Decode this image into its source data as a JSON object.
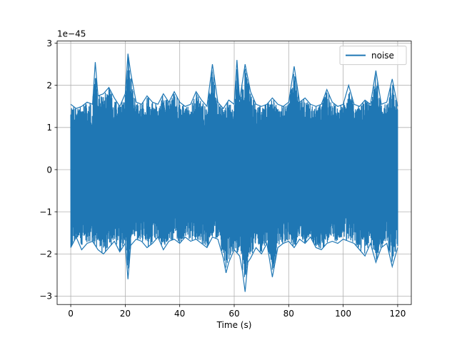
{
  "chart_data": {
    "type": "line",
    "xlabel": "Time (s)",
    "ylabel": "",
    "y_scale_label": "1e−45",
    "y_scale_exponent": -45,
    "xlim": [
      -5,
      125
    ],
    "ylim": [
      -3.2,
      3.05
    ],
    "x_ticks": [
      0,
      20,
      40,
      60,
      80,
      100,
      120
    ],
    "x_tick_labels": [
      "0",
      "20",
      "40",
      "60",
      "80",
      "100",
      "120"
    ],
    "y_ticks": [
      -3,
      -2,
      -1,
      0,
      1,
      2,
      3
    ],
    "y_tick_labels": [
      "−3",
      "−2",
      "−1",
      "0",
      "1",
      "2",
      "3"
    ],
    "grid": true,
    "legend_position": "top-right",
    "series": [
      {
        "name": "noise",
        "color": "#1f77b4",
        "x_range": [
          0,
          120
        ],
        "envelope_upper": [
          [
            0,
            1.55
          ],
          [
            2,
            1.45
          ],
          [
            4,
            1.5
          ],
          [
            6,
            1.6
          ],
          [
            8,
            1.55
          ],
          [
            9,
            2.55
          ],
          [
            10,
            1.75
          ],
          [
            12,
            1.8
          ],
          [
            14,
            1.95
          ],
          [
            16,
            1.7
          ],
          [
            18,
            1.5
          ],
          [
            20,
            1.8
          ],
          [
            21,
            2.75
          ],
          [
            22,
            2.3
          ],
          [
            24,
            1.6
          ],
          [
            26,
            1.55
          ],
          [
            28,
            1.75
          ],
          [
            30,
            1.6
          ],
          [
            32,
            1.55
          ],
          [
            34,
            1.8
          ],
          [
            36,
            1.6
          ],
          [
            38,
            1.85
          ],
          [
            40,
            1.6
          ],
          [
            42,
            1.5
          ],
          [
            44,
            1.55
          ],
          [
            46,
            1.85
          ],
          [
            48,
            1.65
          ],
          [
            50,
            1.5
          ],
          [
            52,
            2.5
          ],
          [
            54,
            1.6
          ],
          [
            56,
            1.45
          ],
          [
            58,
            1.65
          ],
          [
            60,
            1.55
          ],
          [
            61,
            2.6
          ],
          [
            62,
            1.65
          ],
          [
            64,
            2.5
          ],
          [
            66,
            1.85
          ],
          [
            68,
            1.55
          ],
          [
            70,
            1.5
          ],
          [
            72,
            1.55
          ],
          [
            74,
            1.7
          ],
          [
            76,
            1.55
          ],
          [
            78,
            1.5
          ],
          [
            80,
            1.6
          ],
          [
            82,
            2.45
          ],
          [
            84,
            1.6
          ],
          [
            86,
            1.7
          ],
          [
            88,
            1.55
          ],
          [
            90,
            1.5
          ],
          [
            92,
            1.55
          ],
          [
            94,
            1.9
          ],
          [
            96,
            1.6
          ],
          [
            98,
            1.5
          ],
          [
            100,
            1.55
          ],
          [
            102,
            2.0
          ],
          [
            104,
            1.55
          ],
          [
            106,
            1.5
          ],
          [
            108,
            1.65
          ],
          [
            110,
            1.55
          ],
          [
            112,
            2.35
          ],
          [
            114,
            1.55
          ],
          [
            116,
            1.6
          ],
          [
            118,
            2.15
          ],
          [
            120,
            1.5
          ]
        ],
        "envelope_lower": [
          [
            0,
            -1.85
          ],
          [
            2,
            -1.6
          ],
          [
            4,
            -1.9
          ],
          [
            6,
            -1.75
          ],
          [
            8,
            -1.7
          ],
          [
            10,
            -1.9
          ],
          [
            12,
            -2.0
          ],
          [
            14,
            -1.85
          ],
          [
            16,
            -1.7
          ],
          [
            18,
            -1.95
          ],
          [
            20,
            -1.75
          ],
          [
            21,
            -2.6
          ],
          [
            22,
            -1.8
          ],
          [
            24,
            -1.65
          ],
          [
            26,
            -1.7
          ],
          [
            28,
            -1.85
          ],
          [
            30,
            -1.75
          ],
          [
            32,
            -1.6
          ],
          [
            34,
            -1.9
          ],
          [
            36,
            -1.7
          ],
          [
            38,
            -1.65
          ],
          [
            40,
            -1.75
          ],
          [
            42,
            -1.6
          ],
          [
            44,
            -1.7
          ],
          [
            46,
            -1.65
          ],
          [
            48,
            -1.75
          ],
          [
            50,
            -1.85
          ],
          [
            52,
            -1.6
          ],
          [
            54,
            -1.65
          ],
          [
            56,
            -2.1
          ],
          [
            57,
            -2.45
          ],
          [
            58,
            -2.2
          ],
          [
            60,
            -1.9
          ],
          [
            62,
            -2.05
          ],
          [
            63,
            -2.4
          ],
          [
            64,
            -2.9
          ],
          [
            65,
            -2.2
          ],
          [
            66,
            -2.1
          ],
          [
            68,
            -1.85
          ],
          [
            70,
            -2.0
          ],
          [
            72,
            -1.75
          ],
          [
            74,
            -2.55
          ],
          [
            76,
            -1.85
          ],
          [
            78,
            -1.75
          ],
          [
            80,
            -1.7
          ],
          [
            82,
            -1.85
          ],
          [
            84,
            -1.65
          ],
          [
            86,
            -1.75
          ],
          [
            88,
            -1.6
          ],
          [
            90,
            -1.85
          ],
          [
            92,
            -1.9
          ],
          [
            94,
            -1.75
          ],
          [
            96,
            -1.7
          ],
          [
            98,
            -1.75
          ],
          [
            100,
            -1.65
          ],
          [
            102,
            -1.7
          ],
          [
            104,
            -1.75
          ],
          [
            106,
            -1.9
          ],
          [
            108,
            -2.05
          ],
          [
            110,
            -1.75
          ],
          [
            112,
            -2.2
          ],
          [
            114,
            -1.85
          ],
          [
            116,
            -1.75
          ],
          [
            118,
            -2.3
          ],
          [
            120,
            -1.85
          ]
        ]
      }
    ]
  },
  "legend": {
    "entries": [
      "noise"
    ]
  }
}
